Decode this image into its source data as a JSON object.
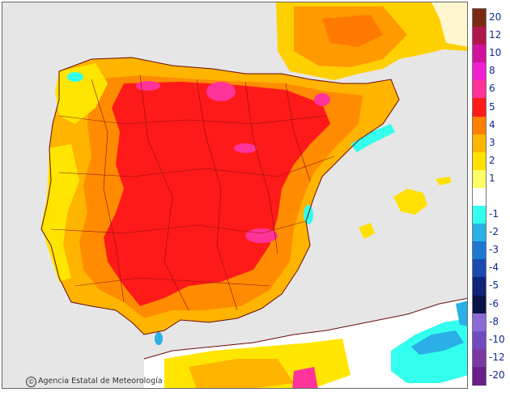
{
  "credit": {
    "icon_symbol": "©",
    "text": "Agencia Estatal de Meteorología"
  },
  "legend": {
    "items": [
      {
        "label": "20",
        "color": "#7a2a10"
      },
      {
        "label": "12",
        "color": "#b0174f"
      },
      {
        "label": "10",
        "color": "#d0139a"
      },
      {
        "label": "8",
        "color": "#f01fd0"
      },
      {
        "label": "6",
        "color": "#ff3399"
      },
      {
        "label": "5",
        "color": "#ff1a1a"
      },
      {
        "label": "4",
        "color": "#ff8000"
      },
      {
        "label": "3",
        "color": "#ffb400"
      },
      {
        "label": "2",
        "color": "#ffe000"
      },
      {
        "label": "1",
        "color": "#ffff66"
      },
      {
        "label": "",
        "color": "#ffffff"
      },
      {
        "label": "-1",
        "color": "#33ffee"
      },
      {
        "label": "-2",
        "color": "#2ab0e6"
      },
      {
        "label": "-3",
        "color": "#1e78d2"
      },
      {
        "label": "-4",
        "color": "#1b49b2"
      },
      {
        "label": "-5",
        "color": "#11237a"
      },
      {
        "label": "-6",
        "color": "#0a1446"
      },
      {
        "label": "-8",
        "color": "#8a6ad6"
      },
      {
        "label": "-10",
        "color": "#6e4cc0"
      },
      {
        "label": "-12",
        "color": "#7a3aa6"
      },
      {
        "label": "-20",
        "color": "#6a1f8a"
      }
    ]
  }
}
